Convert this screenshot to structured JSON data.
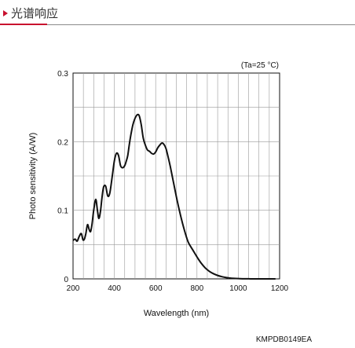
{
  "header": {
    "title": "光谱响应",
    "accent_color": "#c8102e"
  },
  "chart_data": {
    "type": "line",
    "title": "",
    "xlabel": "Wavelength (nm)",
    "ylabel": "Photo sensitivity (A/W)",
    "xlim": [
      200,
      1200
    ],
    "ylim": [
      0,
      0.3
    ],
    "xticks": [
      "200",
      "400",
      "600",
      "800",
      "1000",
      "1200"
    ],
    "yticks": [
      "0",
      "0.1",
      "0.2",
      "0.3"
    ],
    "grid": true,
    "annotation": "(Ta=25 °C)",
    "code": "KMPDB0149EA",
    "series": [
      {
        "color": "#111111",
        "x": [
          200,
          210,
          220,
          230,
          240,
          248,
          255,
          262,
          270,
          278,
          285,
          292,
          300,
          310,
          318,
          325,
          333,
          340,
          348,
          358,
          368,
          378,
          390,
          400,
          410,
          420,
          430,
          440,
          450,
          458,
          465,
          472,
          480,
          490,
          500,
          510,
          520,
          530,
          540,
          550,
          560,
          570,
          580,
          590,
          600,
          610,
          620,
          630,
          640,
          650,
          660,
          670,
          680,
          690,
          700,
          710,
          720,
          730,
          740,
          750,
          760,
          780,
          800,
          820,
          840,
          860,
          880,
          900,
          920,
          940,
          960,
          980,
          1000,
          1020,
          1040,
          1060,
          1080,
          1100,
          1120,
          1140,
          1160,
          1180
        ],
        "y": [
          0.056,
          0.058,
          0.055,
          0.062,
          0.066,
          0.057,
          0.058,
          0.066,
          0.079,
          0.072,
          0.069,
          0.08,
          0.1,
          0.116,
          0.1,
          0.088,
          0.099,
          0.118,
          0.134,
          0.135,
          0.121,
          0.125,
          0.15,
          0.172,
          0.183,
          0.18,
          0.165,
          0.162,
          0.165,
          0.172,
          0.18,
          0.195,
          0.21,
          0.225,
          0.234,
          0.239,
          0.238,
          0.225,
          0.205,
          0.195,
          0.188,
          0.186,
          0.183,
          0.182,
          0.185,
          0.191,
          0.195,
          0.198,
          0.196,
          0.19,
          0.178,
          0.165,
          0.15,
          0.135,
          0.12,
          0.106,
          0.093,
          0.081,
          0.07,
          0.06,
          0.052,
          0.042,
          0.032,
          0.023,
          0.016,
          0.011,
          0.0075,
          0.005,
          0.0032,
          0.002,
          0.0012,
          0.0007,
          0.0004,
          0.0002,
          0.0001,
          5e-05,
          2e-05,
          0.0,
          0.0,
          0.0,
          0.0,
          0.0
        ]
      }
    ]
  }
}
